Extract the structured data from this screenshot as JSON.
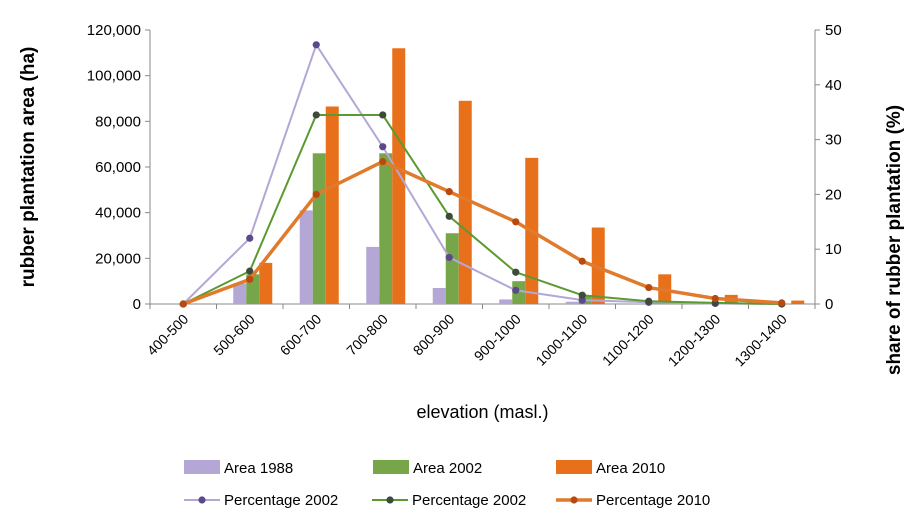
{
  "chart_data": {
    "type": "bar",
    "categories": [
      "400-500",
      "500-600",
      "600-700",
      "700-800",
      "800-900",
      "900-1000",
      "1000-1100",
      "1100-1200",
      "1200-1300",
      "1300-1400"
    ],
    "bar_series": [
      {
        "name": "Area 1988",
        "color": "#b4a7d6",
        "values": [
          0,
          9000,
          41000,
          25000,
          7000,
          2000,
          1000,
          300,
          100,
          50
        ]
      },
      {
        "name": "Area 2002",
        "color": "#77a64a",
        "values": [
          0,
          13000,
          66000,
          66000,
          31000,
          10000,
          3500,
          1000,
          400,
          200
        ]
      },
      {
        "name": "Area 2010",
        "color": "#e8701a",
        "values": [
          0,
          18000,
          86500,
          112000,
          89000,
          64000,
          33500,
          13000,
          4000,
          1500
        ]
      }
    ],
    "line_series": [
      {
        "name": "Percentage 2002",
        "color": "#b4a7d6",
        "marker": "#5b4a8a",
        "width": 2,
        "values": [
          0,
          12,
          47.3,
          28.7,
          8.5,
          2.5,
          0.7,
          0.3,
          0.1,
          0
        ]
      },
      {
        "name": "Percentage 2002",
        "color": "#5a9a30",
        "marker": "#3f4a3a",
        "width": 2,
        "values": [
          0,
          6,
          34.5,
          34.5,
          16,
          5.8,
          1.6,
          0.5,
          0.2,
          0
        ]
      },
      {
        "name": "Percentage 2010",
        "color": "#e07a2c",
        "marker": "#b84a10",
        "width": 3.5,
        "values": [
          0,
          4.5,
          20,
          26,
          20.5,
          15,
          7.8,
          3,
          1,
          0.2
        ]
      }
    ],
    "xlabel": "elevation (masl.)",
    "ylabel": "rubber plantation area (ha)",
    "y2label": "share of rubber plantation (%)",
    "ylim": [
      0,
      120000
    ],
    "yticks": [
      "0",
      "20,000",
      "40,000",
      "60,000",
      "80,000",
      "100,000",
      "120,000"
    ],
    "y2lim": [
      0,
      50
    ],
    "y2ticks": [
      "0",
      "10",
      "20",
      "30",
      "40",
      "50"
    ],
    "grid": false,
    "legend_position": "bottom"
  }
}
